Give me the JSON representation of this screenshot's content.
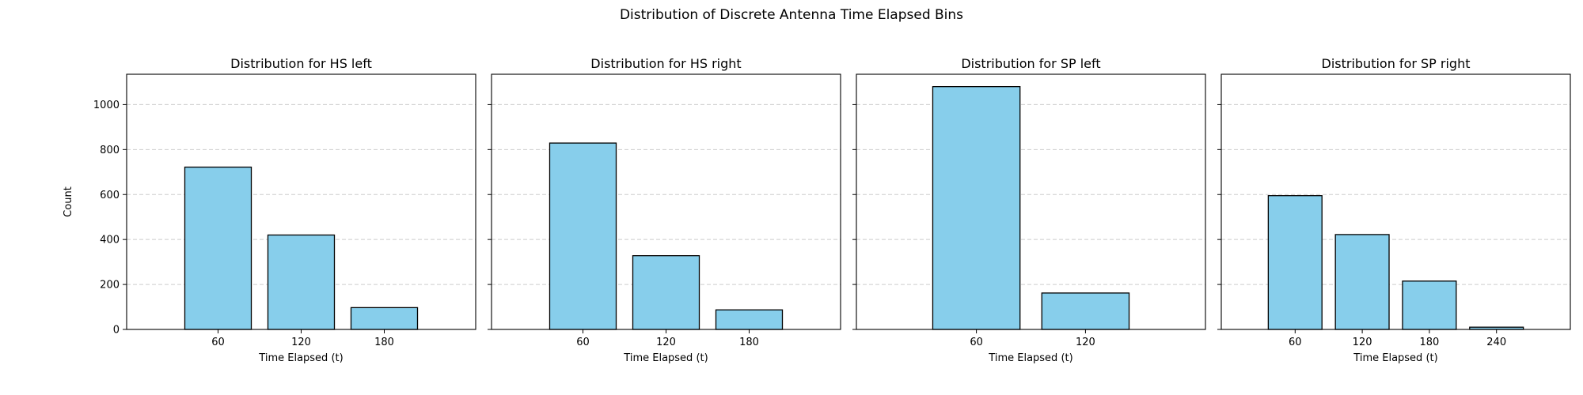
{
  "figure": {
    "suptitle": "Distribution of Discrete Antenna Time Elapsed Bins",
    "bar_color": "#87CEEB",
    "bar_edge_color": "#000000",
    "grid_color": "#cccccc"
  },
  "chart_data": [
    {
      "type": "bar",
      "title": "Distribution for HS left",
      "xlabel": "Time Elapsed (t)",
      "ylabel": "Count",
      "categories": [
        "60",
        "120",
        "180"
      ],
      "values": [
        722,
        420,
        97
      ],
      "ylim": [
        0,
        1135
      ],
      "yticks": [
        0,
        200,
        400,
        600,
        800,
        1000
      ],
      "grid": "y-dashed"
    },
    {
      "type": "bar",
      "title": "Distribution for HS right",
      "xlabel": "Time Elapsed (t)",
      "ylabel": "",
      "categories": [
        "60",
        "120",
        "180"
      ],
      "values": [
        829,
        328,
        87
      ],
      "ylim": [
        0,
        1135
      ],
      "yticks": [
        0,
        200,
        400,
        600,
        800,
        1000
      ],
      "grid": "y-dashed"
    },
    {
      "type": "bar",
      "title": "Distribution for SP left",
      "xlabel": "Time Elapsed (t)",
      "ylabel": "",
      "categories": [
        "60",
        "120"
      ],
      "values": [
        1080,
        162
      ],
      "ylim": [
        0,
        1135
      ],
      "yticks": [
        0,
        200,
        400,
        600,
        800,
        1000
      ],
      "grid": "y-dashed"
    },
    {
      "type": "bar",
      "title": "Distribution for SP right",
      "xlabel": "Time Elapsed (t)",
      "ylabel": "",
      "categories": [
        "60",
        "120",
        "180",
        "240"
      ],
      "values": [
        595,
        422,
        215,
        10
      ],
      "ylim": [
        0,
        1135
      ],
      "yticks": [
        0,
        200,
        400,
        600,
        800,
        1000
      ],
      "grid": "y-dashed"
    }
  ]
}
